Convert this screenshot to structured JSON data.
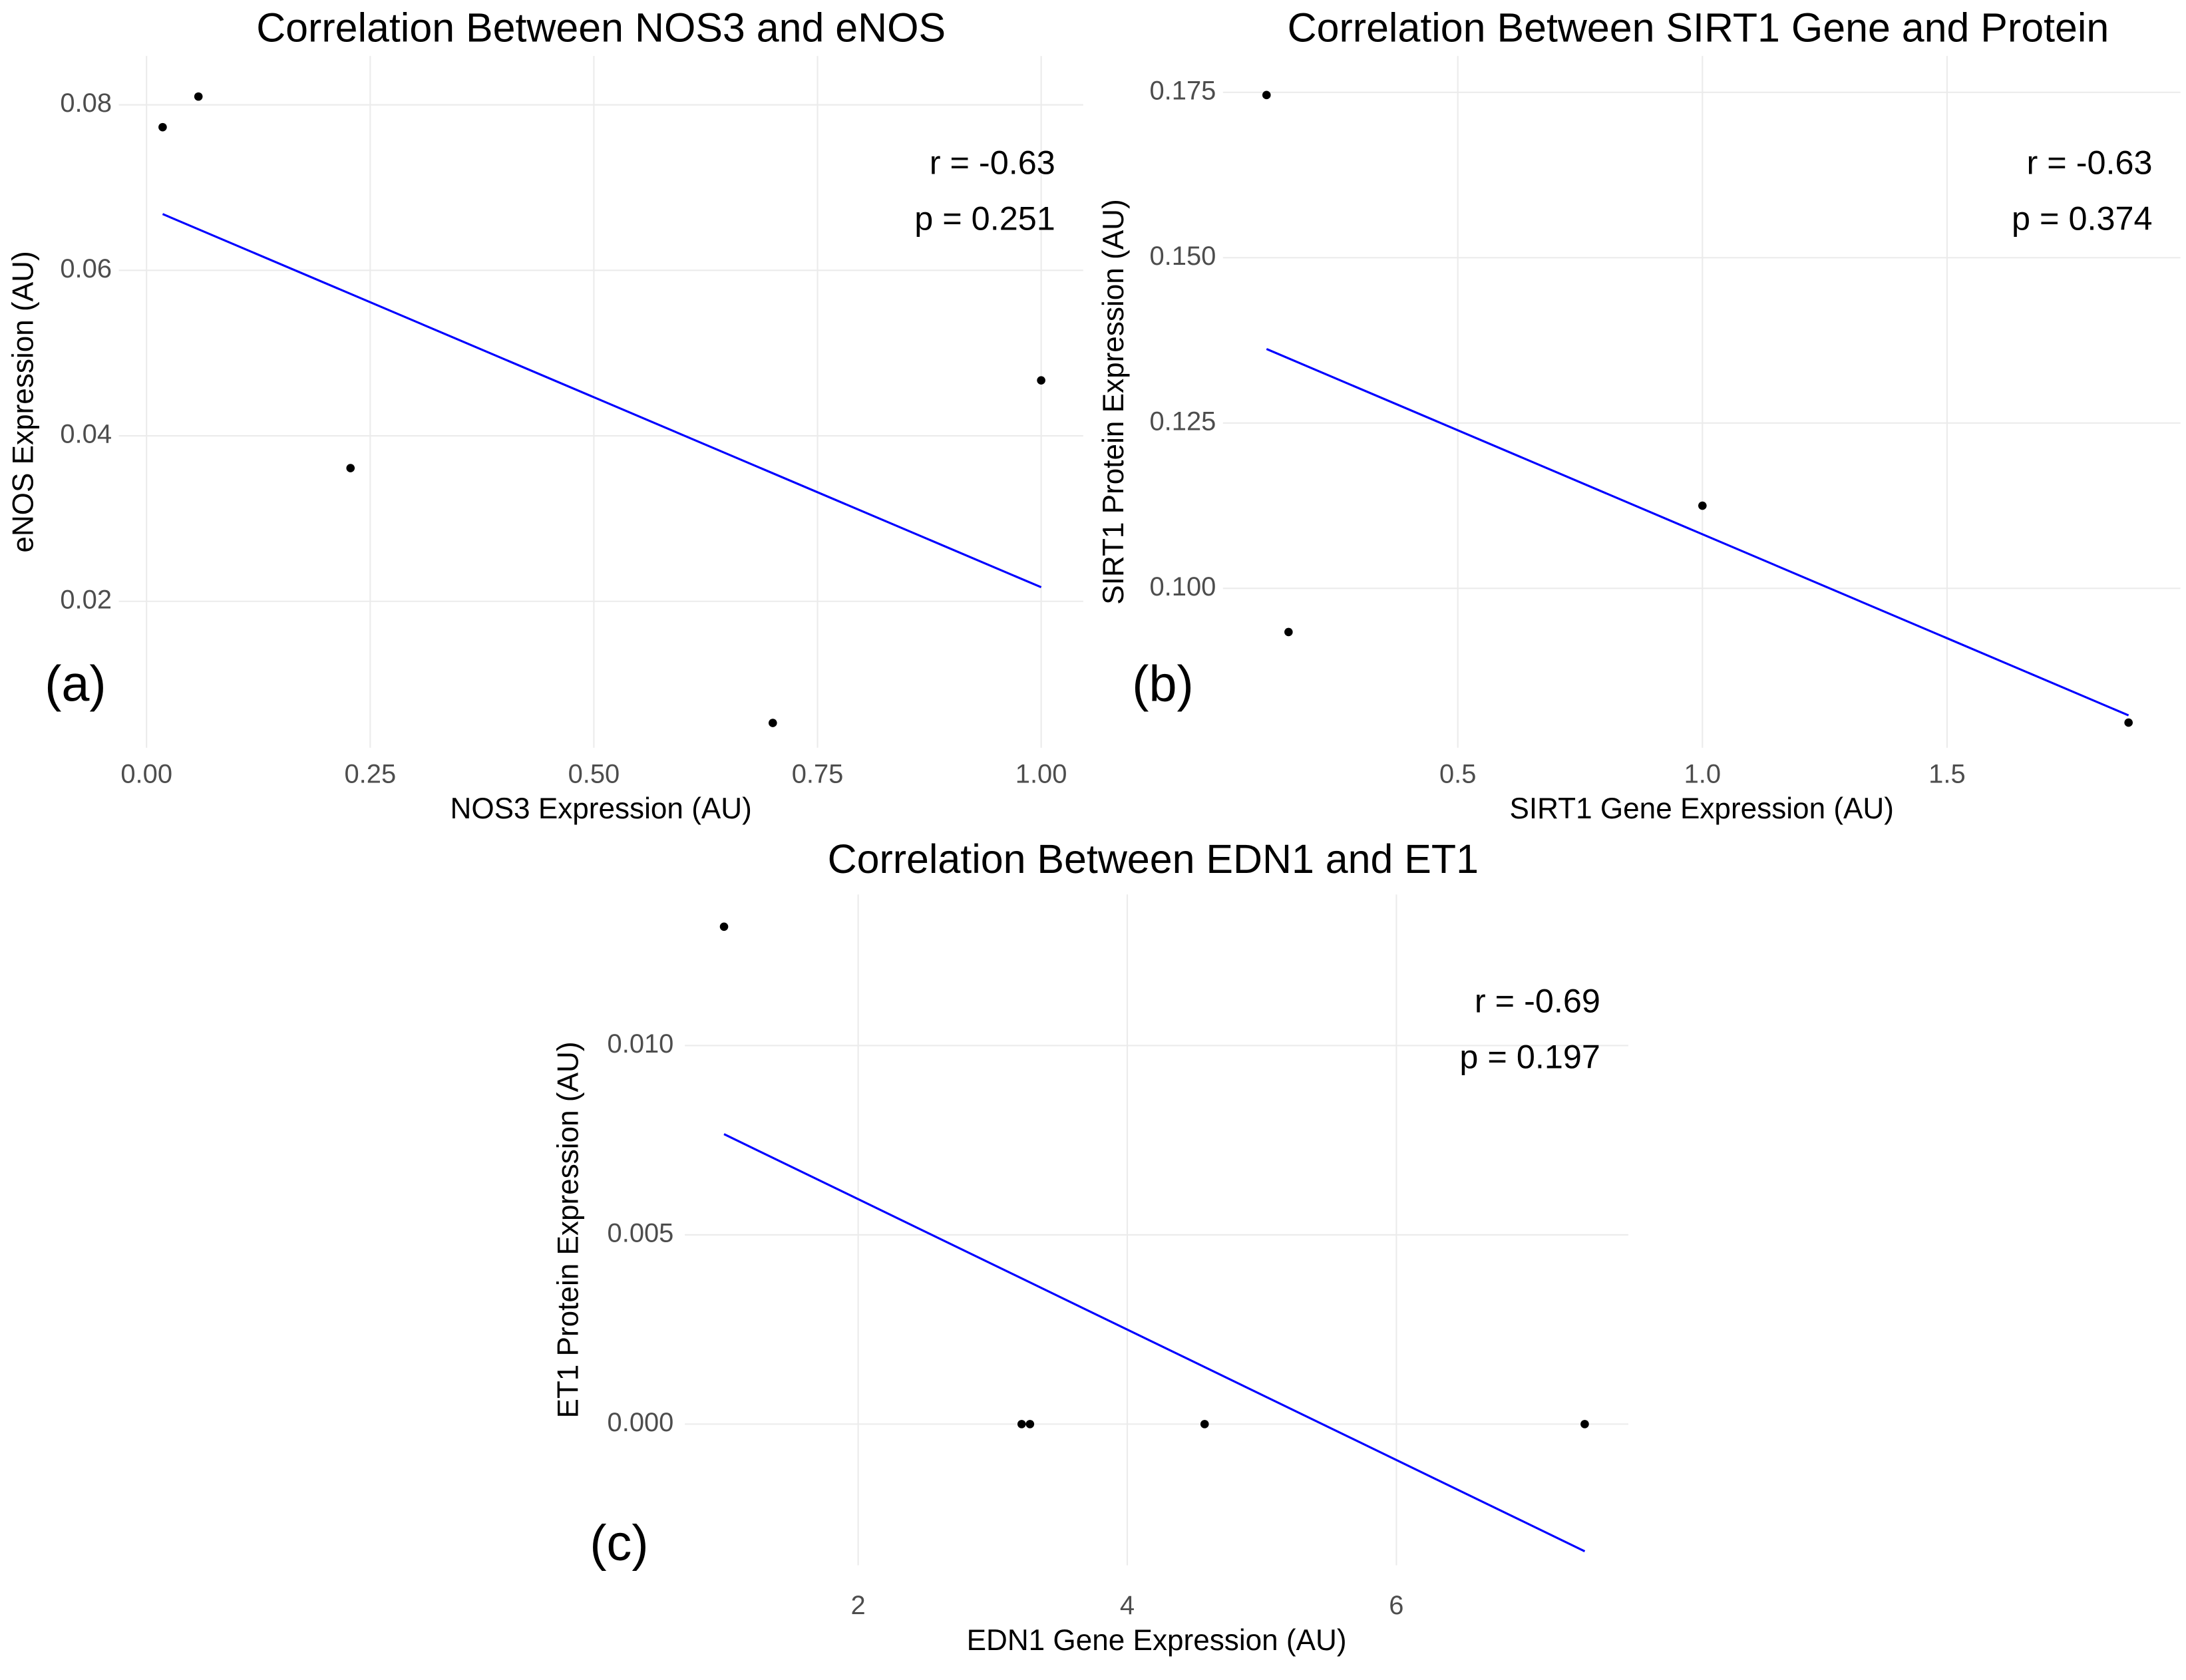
{
  "chart_data": [
    {
      "type": "scatter",
      "title": "Correlation Between NOS3 and eNOS",
      "x_label": "NOS3 Expression (AU)",
      "y_label": "eNOS Expression (AU)",
      "panel_label": "(a)",
      "annotations": [
        "r = -0.63",
        "p = 0.251"
      ],
      "x": [
        0.018,
        0.058,
        0.228,
        0.7,
        1.0
      ],
      "values": [
        0.0773,
        0.081,
        0.0361,
        0.0053,
        0.0467
      ],
      "trend_line": {
        "x": [
          0.018,
          1.0
        ],
        "values": [
          0.0668,
          0.0217
        ],
        "color": "#0000ff"
      },
      "color": "#000000",
      "xlim": [
        -0.031,
        1.047
      ],
      "ylim": [
        0.0023,
        0.0859
      ],
      "xticks": [
        {
          "value": 0,
          "label": "0.00"
        },
        0.25,
        {
          "value": 0.5,
          "label": "0.50"
        },
        0.75,
        {
          "value": 1,
          "label": "1.00"
        }
      ],
      "yticks": [
        0.02,
        0.04,
        0.06,
        0.08
      ],
      "grid": true
    },
    {
      "type": "scatter",
      "title": "Correlation Between SIRT1 Gene and Protein",
      "x_label": "SIRT1 Gene Expression (AU)",
      "y_label": "SIRT1 Protein Expression (AU)",
      "panel_label": "(b)",
      "annotations": [
        "r = -0.63",
        "p = 0.374"
      ],
      "x": [
        0.109,
        0.154,
        1.0,
        1.871
      ],
      "values": [
        0.1746,
        0.0934,
        0.1125,
        0.0797
      ],
      "trend_line": {
        "x": [
          0.109,
          1.871
        ],
        "values": [
          0.1362,
          0.0808
        ],
        "color": "#0000ff"
      },
      "color": "#000000",
      "xlim": [
        0.02,
        1.977
      ],
      "ylim": [
        0.0759,
        0.1805
      ],
      "xticks": [
        0.5,
        {
          "value": 1,
          "label": "1.0"
        },
        1.5
      ],
      "yticks": [
        {
          "value": 0.1,
          "label": "0.100"
        },
        0.125,
        {
          "value": 0.15,
          "label": "0.150"
        },
        0.175
      ],
      "grid": true
    },
    {
      "type": "scatter",
      "title": "Correlation Between EDN1 and ET1",
      "x_label": "EDN1 Gene Expression (AU)",
      "y_label": "ET1 Protein Expression (AU)",
      "panel_label": "(c)",
      "annotations": [
        "r = -0.69",
        "p = 0.197"
      ],
      "x": [
        1.003,
        3.215,
        3.277,
        4.575,
        7.4
      ],
      "values": [
        0.01314,
        0,
        0,
        0,
        0
      ],
      "trend_line": {
        "x": [
          1.003,
          7.4
        ],
        "values": [
          0.00766,
          -0.00336
        ],
        "color": "#0000ff"
      },
      "color": "#000000",
      "xlim": [
        0.712,
        7.724
      ],
      "ylim": [
        -0.00373,
        0.01399
      ],
      "xticks": [
        2,
        4,
        6
      ],
      "yticks": [
        {
          "value": 0,
          "label": "0.000"
        },
        0.005,
        {
          "value": 0.01,
          "label": "0.010"
        }
      ],
      "grid": true
    }
  ]
}
